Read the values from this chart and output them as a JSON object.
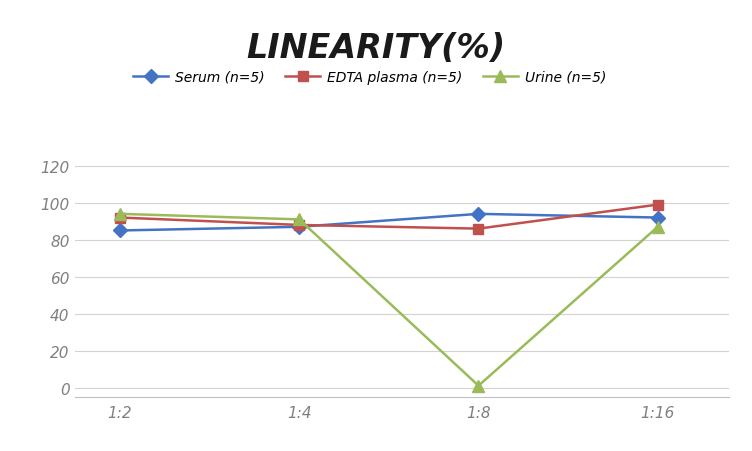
{
  "title": "LINEARITY(%)",
  "x_labels": [
    "1:2",
    "1:4",
    "1:8",
    "1:16"
  ],
  "x_positions": [
    0,
    1,
    2,
    3
  ],
  "series": [
    {
      "label": "Serum (n=5)",
      "values": [
        85,
        87,
        94,
        92
      ],
      "color": "#4472C4",
      "marker": "D",
      "marker_size": 7,
      "linewidth": 1.8
    },
    {
      "label": "EDTA plasma (n=5)",
      "values": [
        92,
        88,
        86,
        99
      ],
      "color": "#C0504D",
      "marker": "s",
      "marker_size": 7,
      "linewidth": 1.8
    },
    {
      "label": "Urine (n=5)",
      "values": [
        94,
        91,
        1,
        87
      ],
      "color": "#9BBB59",
      "marker": "^",
      "marker_size": 8,
      "linewidth": 1.8
    }
  ],
  "ylim": [
    -5,
    132
  ],
  "yticks": [
    0,
    20,
    40,
    60,
    80,
    100,
    120
  ],
  "background_color": "#FFFFFF",
  "grid_color": "#D3D3D3",
  "title_fontsize": 24,
  "legend_fontsize": 10,
  "tick_fontsize": 11,
  "tick_color": "#808080",
  "xlim": [
    -0.25,
    3.4
  ]
}
